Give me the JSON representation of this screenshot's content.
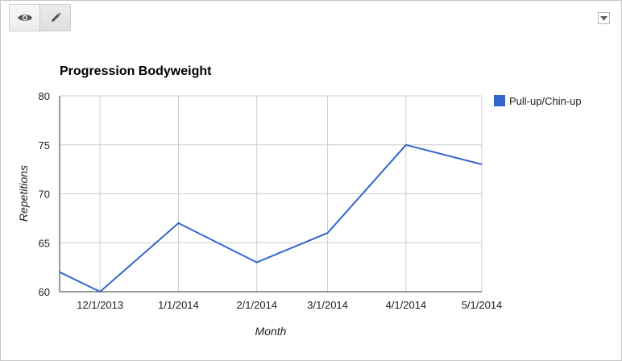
{
  "toolbar": {
    "view_icon": "eye-icon",
    "edit_icon": "pencil-icon",
    "menu_icon": "dropdown-arrow-icon"
  },
  "chart_data": {
    "type": "line",
    "title": "Progression Bodyweight",
    "xlabel": "Month",
    "ylabel": "Repetitions",
    "x": [
      "2013-11-15",
      "2013-12-01",
      "2014-01-01",
      "2014-02-01",
      "2014-03-01",
      "2014-04-01",
      "2014-05-01"
    ],
    "x_tick_labels": [
      "12/1/2013",
      "1/1/2014",
      "2/1/2014",
      "3/1/2014",
      "4/1/2014",
      "5/1/2014"
    ],
    "y_ticks": [
      60,
      65,
      70,
      75,
      80
    ],
    "ylim": [
      60,
      80
    ],
    "grid": true,
    "legend_position": "right",
    "series": [
      {
        "name": "Pull-up/Chin-up",
        "color": "#3366cc",
        "values": [
          62,
          60,
          67,
          63,
          66,
          75,
          73
        ]
      }
    ]
  }
}
